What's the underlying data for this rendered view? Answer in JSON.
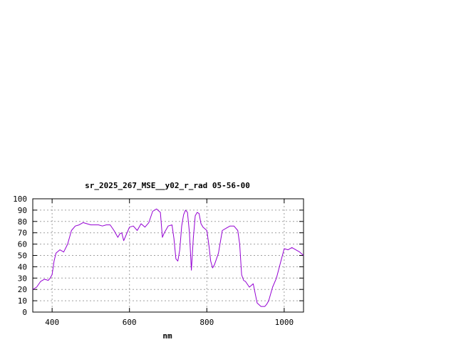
{
  "chart_data": {
    "type": "line",
    "title": "sr_2025_267_MSE__y02_r_rad 05-56-00",
    "xlabel": "nm",
    "ylabel": "",
    "xlim": [
      350,
      1050
    ],
    "ylim": [
      0,
      100
    ],
    "xticks": [
      400,
      600,
      800,
      1000
    ],
    "yticks": [
      0,
      10,
      20,
      30,
      40,
      50,
      60,
      70,
      80,
      90,
      100
    ],
    "grid": true,
    "legend": "none",
    "line_color": "#9400d3",
    "series": [
      {
        "x": [
          350,
          360,
          370,
          380,
          390,
          395,
          400,
          405,
          410,
          420,
          430,
          440,
          450,
          460,
          470,
          480,
          490,
          500,
          510,
          520,
          530,
          540,
          550,
          560,
          570,
          575,
          580,
          585,
          590,
          600,
          610,
          620,
          630,
          640,
          650,
          660,
          670,
          680,
          685,
          690,
          700,
          710,
          715,
          720,
          725,
          730,
          735,
          740,
          745,
          750,
          755,
          760,
          765,
          770,
          775,
          780,
          785,
          790,
          800,
          805,
          810,
          815,
          820,
          830,
          840,
          850,
          860,
          870,
          880,
          885,
          890,
          895,
          900,
          910,
          920,
          930,
          940,
          950,
          955,
          960,
          970,
          980,
          990,
          1000,
          1010,
          1020,
          1030,
          1040,
          1050
        ],
        "y": [
          20,
          22,
          27,
          29,
          28,
          30,
          33,
          45,
          52,
          55,
          53,
          60,
          72,
          76,
          77,
          79,
          78,
          77,
          77,
          77,
          76,
          77,
          77,
          72,
          66,
          69,
          70,
          63,
          67,
          75,
          76,
          72,
          78,
          75,
          79,
          89,
          91,
          88,
          66,
          70,
          76,
          77,
          65,
          47,
          45,
          55,
          76,
          86,
          90,
          88,
          70,
          37,
          65,
          85,
          88,
          87,
          78,
          75,
          72,
          60,
          45,
          39,
          42,
          52,
          72,
          74,
          76,
          76,
          72,
          60,
          33,
          28,
          27,
          22,
          25,
          8,
          5,
          5,
          7,
          10,
          22,
          30,
          43,
          56,
          55,
          57,
          55,
          53,
          50
        ]
      }
    ]
  }
}
